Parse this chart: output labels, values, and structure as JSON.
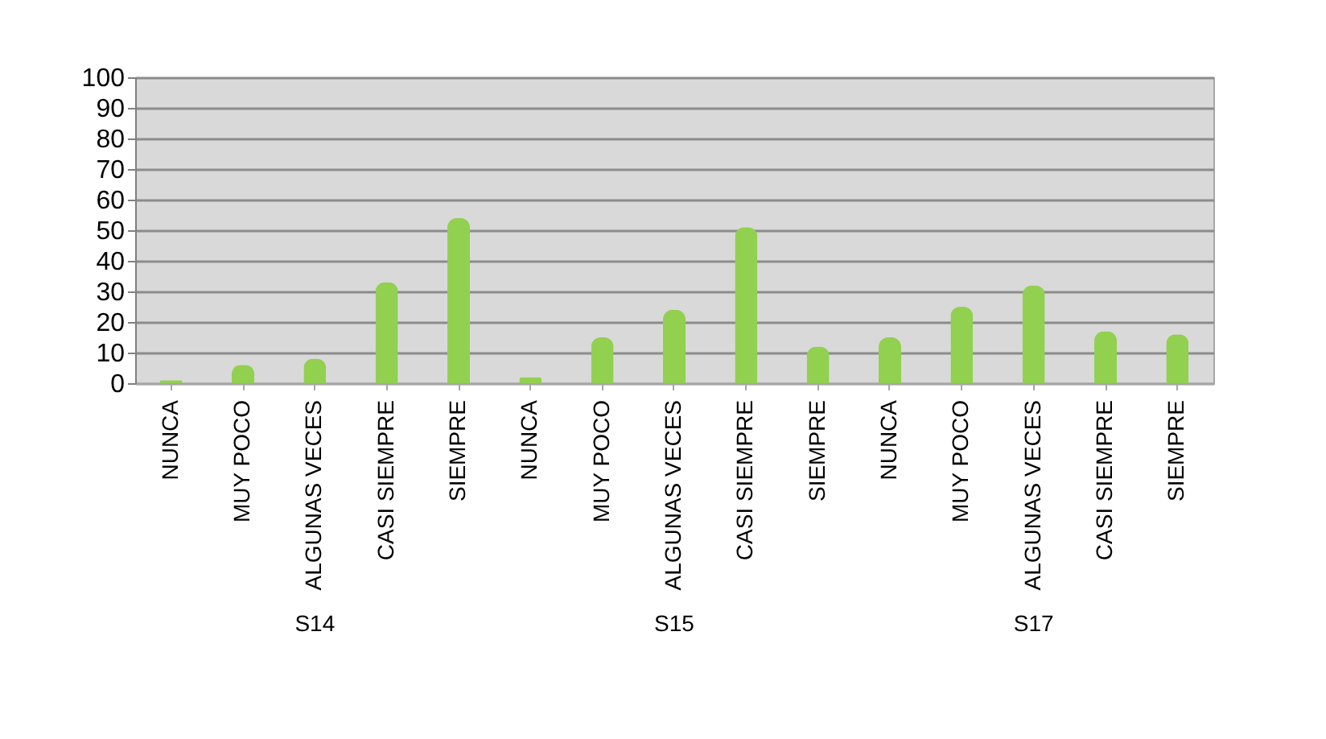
{
  "chart_data": {
    "type": "bar",
    "categories": [
      "NUNCA",
      "MUY POCO",
      "ALGUNAS VECES",
      "CASI SIEMPRE",
      "SIEMPRE",
      "NUNCA",
      "MUY POCO",
      "ALGUNAS VECES",
      "CASI SIEMPRE",
      "SIEMPRE",
      "NUNCA",
      "MUY POCO",
      "ALGUNAS VECES",
      "CASI SIEMPRE",
      "SIEMPRE"
    ],
    "values": [
      1,
      6,
      8,
      33,
      54,
      2,
      15,
      24,
      51,
      12,
      15,
      25,
      32,
      17,
      16
    ],
    "color": "#92d050",
    "annotations": [
      "S14",
      "S15",
      "S17"
    ],
    "ylim": [
      0,
      100
    ],
    "yticks": [
      0,
      10,
      20,
      30,
      40,
      50,
      60,
      70,
      80,
      90,
      100
    ],
    "grid": "y"
  }
}
